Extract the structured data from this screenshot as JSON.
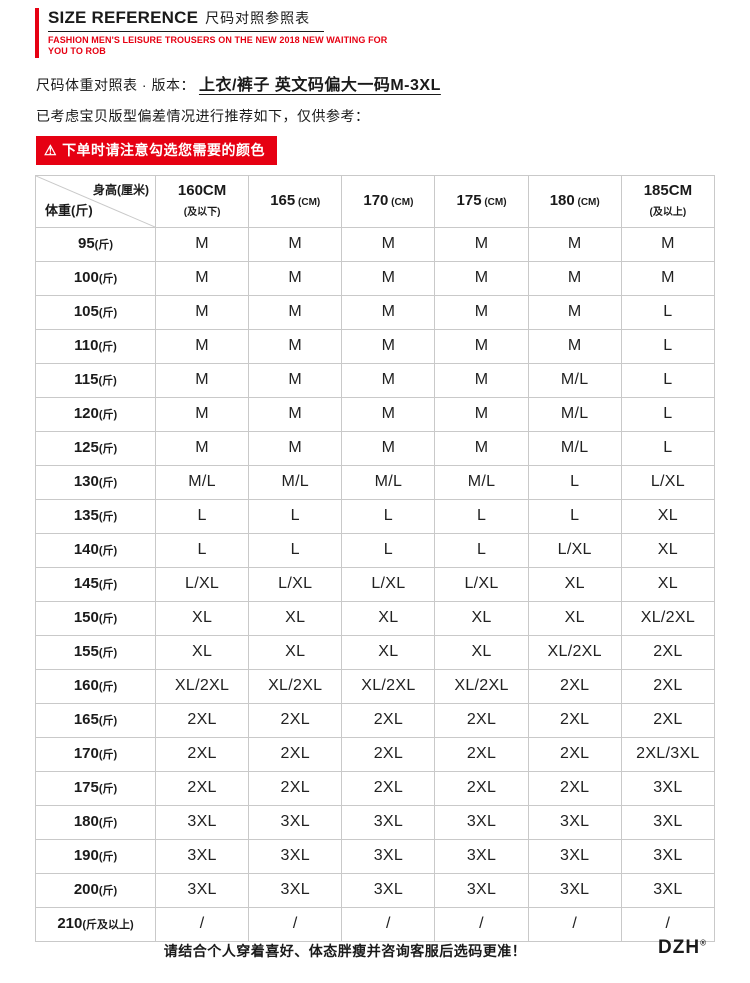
{
  "colors": {
    "accent_red": "#e60012",
    "border_gray": "#c9c9c9"
  },
  "header": {
    "title_en": "SIZE REFERENCE",
    "title_zh": "尺码对照参照表",
    "subtitle_line1": "FASHION MEN'S LEISURE TROUSERS ON THE NEW 2018 NEW WAITING FOR",
    "subtitle_line2": "YOU TO ROB"
  },
  "intro": {
    "version_prefix": "尺码体重对照表 · 版本：",
    "version_emphasis": "上衣/裤子 英文码偏大一码M-3XL",
    "note": "已考虑宝贝版型偏差情况进行推荐如下，仅供参考：",
    "warning_icon": "⚠",
    "warning_text": "下单时请注意勾选您需要的颜色"
  },
  "table": {
    "corner_top": "身高(厘米)",
    "corner_bottom": "体重(斤)",
    "columns": [
      {
        "label": "160CM",
        "sub": "(及以下)",
        "two_line": true
      },
      {
        "label": "165",
        "sub": "(CM)",
        "two_line": false
      },
      {
        "label": "170",
        "sub": "(CM)",
        "two_line": false
      },
      {
        "label": "175",
        "sub": "(CM)",
        "two_line": false
      },
      {
        "label": "180",
        "sub": "(CM)",
        "two_line": false
      },
      {
        "label": "185CM",
        "sub": "(及以上)",
        "two_line": true
      }
    ],
    "rows": [
      {
        "weight": "95",
        "unit": "(斤)",
        "sizes": [
          "M",
          "M",
          "M",
          "M",
          "M",
          "M"
        ]
      },
      {
        "weight": "100",
        "unit": "(斤)",
        "sizes": [
          "M",
          "M",
          "M",
          "M",
          "M",
          "M"
        ]
      },
      {
        "weight": "105",
        "unit": "(斤)",
        "sizes": [
          "M",
          "M",
          "M",
          "M",
          "M",
          "L"
        ]
      },
      {
        "weight": "110",
        "unit": "(斤)",
        "sizes": [
          "M",
          "M",
          "M",
          "M",
          "M",
          "L"
        ]
      },
      {
        "weight": "115",
        "unit": "(斤)",
        "sizes": [
          "M",
          "M",
          "M",
          "M",
          "M/L",
          "L"
        ]
      },
      {
        "weight": "120",
        "unit": "(斤)",
        "sizes": [
          "M",
          "M",
          "M",
          "M",
          "M/L",
          "L"
        ]
      },
      {
        "weight": "125",
        "unit": "(斤)",
        "sizes": [
          "M",
          "M",
          "M",
          "M",
          "M/L",
          "L"
        ]
      },
      {
        "weight": "130",
        "unit": "(斤)",
        "sizes": [
          "M/L",
          "M/L",
          "M/L",
          "M/L",
          "L",
          "L/XL"
        ]
      },
      {
        "weight": "135",
        "unit": "(斤)",
        "sizes": [
          "L",
          "L",
          "L",
          "L",
          "L",
          "XL"
        ]
      },
      {
        "weight": "140",
        "unit": "(斤)",
        "sizes": [
          "L",
          "L",
          "L",
          "L",
          "L/XL",
          "XL"
        ]
      },
      {
        "weight": "145",
        "unit": "(斤)",
        "sizes": [
          "L/XL",
          "L/XL",
          "L/XL",
          "L/XL",
          "XL",
          "XL"
        ]
      },
      {
        "weight": "150",
        "unit": "(斤)",
        "sizes": [
          "XL",
          "XL",
          "XL",
          "XL",
          "XL",
          "XL/2XL"
        ]
      },
      {
        "weight": "155",
        "unit": "(斤)",
        "sizes": [
          "XL",
          "XL",
          "XL",
          "XL",
          "XL/2XL",
          "2XL"
        ]
      },
      {
        "weight": "160",
        "unit": "(斤)",
        "sizes": [
          "XL/2XL",
          "XL/2XL",
          "XL/2XL",
          "XL/2XL",
          "2XL",
          "2XL"
        ]
      },
      {
        "weight": "165",
        "unit": "(斤)",
        "sizes": [
          "2XL",
          "2XL",
          "2XL",
          "2XL",
          "2XL",
          "2XL"
        ]
      },
      {
        "weight": "170",
        "unit": "(斤)",
        "sizes": [
          "2XL",
          "2XL",
          "2XL",
          "2XL",
          "2XL",
          "2XL/3XL"
        ]
      },
      {
        "weight": "175",
        "unit": "(斤)",
        "sizes": [
          "2XL",
          "2XL",
          "2XL",
          "2XL",
          "2XL",
          "3XL"
        ]
      },
      {
        "weight": "180",
        "unit": "(斤)",
        "sizes": [
          "3XL",
          "3XL",
          "3XL",
          "3XL",
          "3XL",
          "3XL"
        ]
      },
      {
        "weight": "190",
        "unit": "(斤)",
        "sizes": [
          "3XL",
          "3XL",
          "3XL",
          "3XL",
          "3XL",
          "3XL"
        ]
      },
      {
        "weight": "200",
        "unit": "(斤)",
        "sizes": [
          "3XL",
          "3XL",
          "3XL",
          "3XL",
          "3XL",
          "3XL"
        ]
      },
      {
        "weight": "210",
        "unit": "(斤及以上)",
        "sizes": [
          "/",
          "/",
          "/",
          "/",
          "/",
          "/"
        ]
      }
    ]
  },
  "footer": {
    "note": "请结合个人穿着喜好、体态胖瘦并咨询客服后选码更准！",
    "brand": "DZH",
    "brand_mark": "®"
  }
}
